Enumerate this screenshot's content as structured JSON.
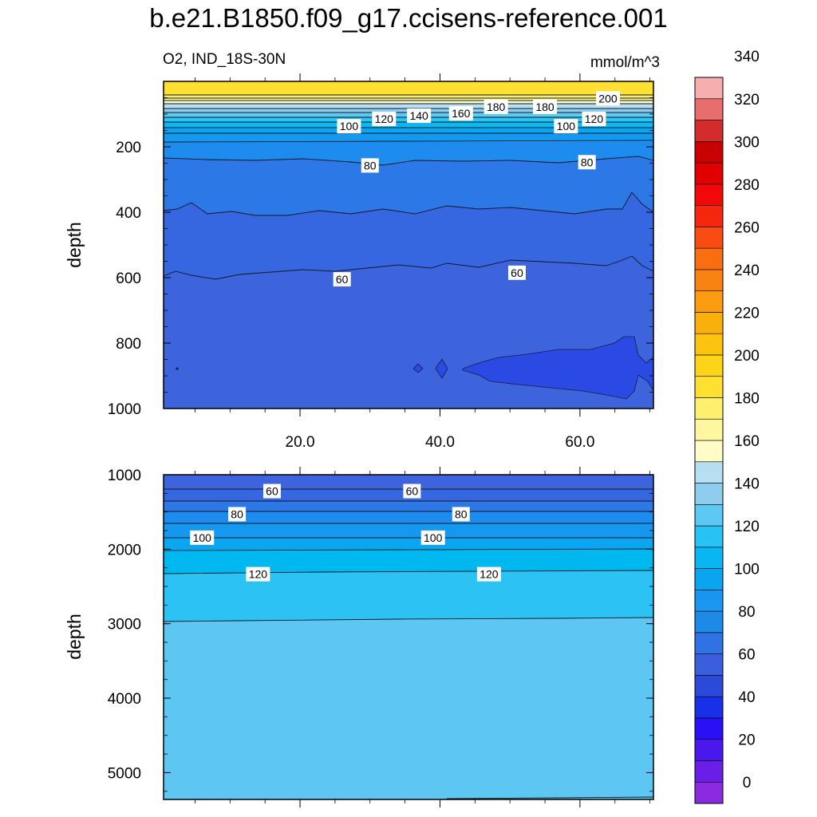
{
  "title": "b.e21.B1850.f09_g17.ccisens-reference.001",
  "subtitle_left": "O2, IND_18S-30N",
  "subtitle_right": "mmol/m^3",
  "colorbar": {
    "tick_labels": [
      "0",
      "20",
      "40",
      "60",
      "80",
      "100",
      "120",
      "140",
      "160",
      "180",
      "200",
      "220",
      "240",
      "260",
      "280",
      "300",
      "320",
      "340"
    ],
    "colors": [
      "#8a2be2",
      "#6a1fe6",
      "#4a17ee",
      "#2a10f5",
      "#1730e8",
      "#2b4ad9",
      "#3b5fdc",
      "#2f72e6",
      "#1e8ae8",
      "#1a96f0",
      "#0aa5f0",
      "#0ab6f2",
      "#28c3f4",
      "#5cc8f3",
      "#8fcdee",
      "#b6dff2",
      "#fffcc8",
      "#fff6a0",
      "#fdf06f",
      "#fee033",
      "#fed418",
      "#fcc30f",
      "#fab00c",
      "#fa9b10",
      "#f88313",
      "#f86e10",
      "#f84c12",
      "#f4260d",
      "#f20808",
      "#e00000",
      "#c80000",
      "#d42c2c",
      "#e86d6d",
      "#f6aeae"
    ]
  },
  "chart_data": [
    {
      "type": "heatmap",
      "panel": "upper",
      "title": "",
      "ylabel": "depth",
      "xlabel": "",
      "y_reversed": true,
      "ylim": [
        0,
        1000
      ],
      "xlim": [
        0.5,
        70.5
      ],
      "y_ticks": [
        "200",
        "400",
        "600",
        "800",
        "1000"
      ],
      "x_ticks": [
        "20.0",
        "40.0",
        "60.0"
      ],
      "contour_labels": [
        {
          "text": "200",
          "x": 64,
          "y": 52
        },
        {
          "text": "180",
          "x": 48,
          "y": 78
        },
        {
          "text": "180",
          "x": 55,
          "y": 78
        },
        {
          "text": "160",
          "x": 43,
          "y": 98
        },
        {
          "text": "140",
          "x": 37,
          "y": 105
        },
        {
          "text": "120",
          "x": 32,
          "y": 115
        },
        {
          "text": "120",
          "x": 62,
          "y": 115
        },
        {
          "text": "100",
          "x": 27,
          "y": 137
        },
        {
          "text": "100",
          "x": 58,
          "y": 137
        },
        {
          "text": "80",
          "x": 30,
          "y": 257
        },
        {
          "text": "80",
          "x": 61,
          "y": 247
        },
        {
          "text": "60",
          "x": 26,
          "y": 605
        },
        {
          "text": "60",
          "x": 51,
          "y": 585
        }
      ]
    },
    {
      "type": "heatmap",
      "panel": "lower",
      "title": "",
      "ylabel": "depth",
      "xlabel": "",
      "y_reversed": true,
      "ylim": [
        1000,
        5360
      ],
      "xlim": [
        0.5,
        70.5
      ],
      "y_ticks": [
        "1000",
        "2000",
        "3000",
        "4000",
        "5000"
      ],
      "contour_labels": [
        {
          "text": "60",
          "x": 16,
          "y": 1220
        },
        {
          "text": "60",
          "x": 36,
          "y": 1220
        },
        {
          "text": "80",
          "x": 11,
          "y": 1530
        },
        {
          "text": "80",
          "x": 43,
          "y": 1530
        },
        {
          "text": "100",
          "x": 6,
          "y": 1845
        },
        {
          "text": "100",
          "x": 39,
          "y": 1845
        },
        {
          "text": "120",
          "x": 14,
          "y": 2335
        },
        {
          "text": "120",
          "x": 47,
          "y": 2335
        }
      ]
    }
  ]
}
